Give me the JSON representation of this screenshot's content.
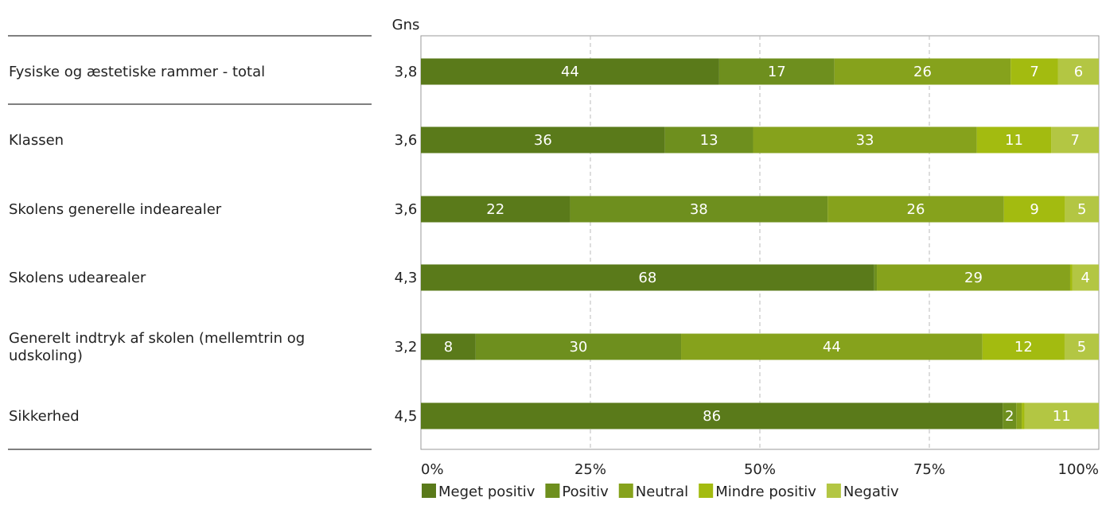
{
  "chart_data": {
    "type": "bar",
    "orientation": "horizontal",
    "stacked": true,
    "normalized": true,
    "avg_header": "Gns",
    "categories": [
      "Fysiske og æstetiske rammer - total",
      "Klassen",
      "Skolens generelle indearealer",
      "Skolens udearealer",
      "Generelt indtryk af skolen (mellemtrin og udskoling)",
      "Sikkerhed"
    ],
    "averages": [
      "3,8",
      "3,6",
      "3,6",
      "4,3",
      "3,2",
      "4,5"
    ],
    "series": [
      {
        "name": "Meget positiv",
        "color": "#5a7a1a",
        "values": [
          44,
          36,
          22,
          68,
          8,
          86
        ],
        "labels": [
          "44",
          "36",
          "22",
          "68",
          "8",
          "86"
        ]
      },
      {
        "name": "Positiv",
        "color": "#6e8f1e",
        "values": [
          17,
          13,
          38,
          0.4,
          30,
          2
        ],
        "labels": [
          "17",
          "13",
          "38",
          "",
          "30",
          "2"
        ]
      },
      {
        "name": "Neutral",
        "color": "#86a21c",
        "values": [
          26,
          33,
          26,
          29,
          44,
          0.8
        ],
        "labels": [
          "26",
          "33",
          "26",
          "29",
          "44",
          ""
        ]
      },
      {
        "name": "Mindre positiv",
        "color": "#a3bb10",
        "values": [
          7,
          11,
          9,
          0.3,
          12,
          0.4
        ],
        "labels": [
          "7",
          "11",
          "9",
          "",
          "12",
          ""
        ]
      },
      {
        "name": "Negativ",
        "color": "#b3c643",
        "values": [
          6,
          7,
          5,
          4,
          5,
          11
        ],
        "labels": [
          "6",
          "7",
          "5",
          "4",
          "5",
          "11"
        ]
      }
    ],
    "x_ticks": [
      "0%",
      "25%",
      "50%",
      "75%",
      "100%"
    ],
    "xlim": [
      0,
      100
    ],
    "grid": "vertical dashed",
    "legend_position": "bottom"
  }
}
